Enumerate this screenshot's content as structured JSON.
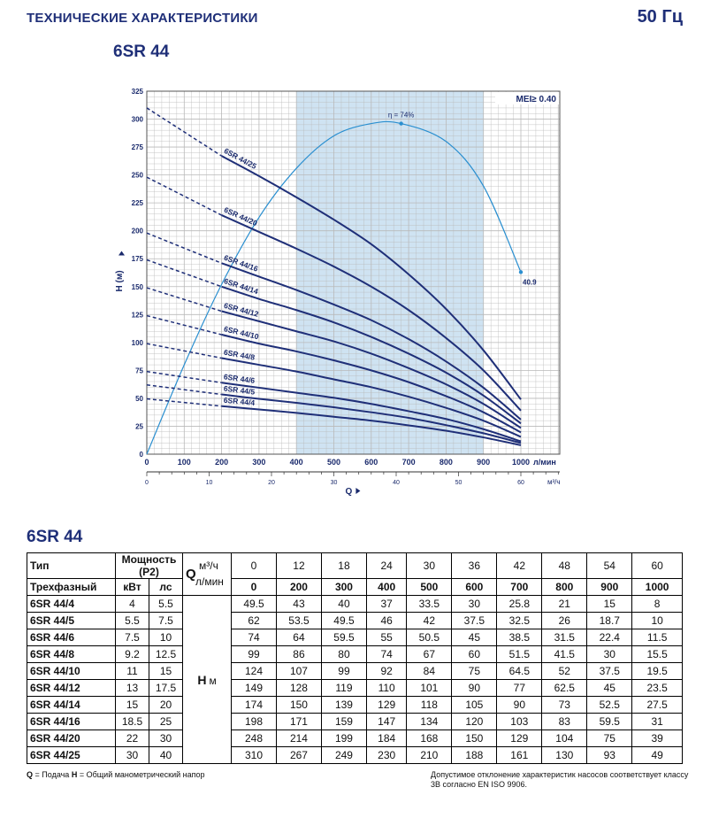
{
  "header": {
    "title": "ТЕХНИЧЕСКИЕ ХАРАКТЕРИСТИКИ",
    "frequency": "50 Гц",
    "model": "6SR 44"
  },
  "chart_data": {
    "type": "line",
    "ylabel": "H (м)",
    "xlabel": "Q",
    "x_unit": "л/мин",
    "x2_unit": "м³/ч",
    "mei_label": "MEI≥ 0.40",
    "eff_peak_label": "η = 74%",
    "eff_end_label": "40.9",
    "xlim": [
      0,
      1000
    ],
    "ylim": [
      0,
      325
    ],
    "x_ticks": [
      0,
      100,
      200,
      300,
      400,
      500,
      600,
      700,
      800,
      900,
      1000
    ],
    "y_ticks": [
      0,
      25,
      50,
      75,
      100,
      125,
      150,
      175,
      200,
      225,
      250,
      275,
      300,
      325
    ],
    "x2_ticks": [
      0,
      10,
      20,
      30,
      40,
      50,
      60
    ],
    "shaded_range": [
      400,
      900
    ],
    "grid": true,
    "colors": {
      "curve": "#1f2f78",
      "efficiency": "#2a8fd0",
      "shade": "#cfe3f2",
      "grid": "#b9b9b9"
    },
    "x": [
      0,
      200,
      300,
      400,
      500,
      600,
      700,
      800,
      900,
      1000
    ],
    "series": [
      {
        "name": "6SR 44/25",
        "values": [
          310,
          267,
          249,
          230,
          210,
          188,
          161,
          130,
          93,
          49
        ]
      },
      {
        "name": "6SR 44/20",
        "values": [
          248,
          214,
          199,
          184,
          168,
          150,
          129,
          104,
          75,
          39
        ]
      },
      {
        "name": "6SR 44/16",
        "values": [
          198,
          171,
          159,
          147,
          134,
          120,
          103,
          83,
          59.5,
          31
        ]
      },
      {
        "name": "6SR 44/14",
        "values": [
          174,
          150,
          139,
          129,
          118,
          105,
          90,
          73,
          52.5,
          27.5
        ]
      },
      {
        "name": "6SR 44/12",
        "values": [
          149,
          128,
          119,
          110,
          101,
          90,
          77,
          62.5,
          45,
          23.5
        ]
      },
      {
        "name": "6SR 44/10",
        "values": [
          124,
          107,
          99,
          92,
          84,
          75,
          64.5,
          52,
          37.5,
          19.5
        ]
      },
      {
        "name": "6SR 44/8",
        "values": [
          99,
          86,
          80,
          74,
          67,
          60,
          51.5,
          41.5,
          30,
          15.5
        ]
      },
      {
        "name": "6SR 44/6",
        "values": [
          74,
          64,
          59.5,
          55,
          50.5,
          45,
          38.5,
          31.5,
          22.4,
          11.5
        ]
      },
      {
        "name": "6SR 44/5",
        "values": [
          62,
          53.5,
          49.5,
          46,
          42,
          37.5,
          32.5,
          26,
          18.7,
          10
        ]
      },
      {
        "name": "6SR 44/4",
        "values": [
          49.5,
          43,
          40,
          37,
          33.5,
          30,
          25.8,
          21,
          15,
          8
        ]
      }
    ],
    "efficiency": {
      "x": [
        0,
        100,
        200,
        300,
        400,
        500,
        600,
        680,
        800,
        900,
        1000
      ],
      "values": [
        0,
        80,
        152,
        212,
        256,
        285,
        296,
        296,
        280,
        240,
        163
      ]
    }
  },
  "table": {
    "title": "6SR 44",
    "type_label": "Тип",
    "three_phase_label": "Трехфазный",
    "power_label": "Мощность (P2)",
    "kw_label": "кВт",
    "hp_label": "лс",
    "q_label": "Q",
    "q_unit1": "м³/ч",
    "q_unit2": "л/мин",
    "h_label": "H",
    "h_unit": "м",
    "q_m3h": [
      "0",
      "12",
      "18",
      "24",
      "30",
      "36",
      "42",
      "48",
      "54",
      "60"
    ],
    "q_lmin": [
      "0",
      "200",
      "300",
      "400",
      "500",
      "600",
      "700",
      "800",
      "900",
      "1000"
    ],
    "rows": [
      {
        "model": "6SR 44/4",
        "kw": "4",
        "hp": "5.5",
        "h": [
          "49.5",
          "43",
          "40",
          "37",
          "33.5",
          "30",
          "25.8",
          "21",
          "15",
          "8"
        ]
      },
      {
        "model": "6SR 44/5",
        "kw": "5.5",
        "hp": "7.5",
        "h": [
          "62",
          "53.5",
          "49.5",
          "46",
          "42",
          "37.5",
          "32.5",
          "26",
          "18.7",
          "10"
        ]
      },
      {
        "model": "6SR 44/6",
        "kw": "7.5",
        "hp": "10",
        "h": [
          "74",
          "64",
          "59.5",
          "55",
          "50.5",
          "45",
          "38.5",
          "31.5",
          "22.4",
          "11.5"
        ]
      },
      {
        "model": "6SR 44/8",
        "kw": "9.2",
        "hp": "12.5",
        "h": [
          "99",
          "86",
          "80",
          "74",
          "67",
          "60",
          "51.5",
          "41.5",
          "30",
          "15.5"
        ]
      },
      {
        "model": "6SR 44/10",
        "kw": "11",
        "hp": "15",
        "h": [
          "124",
          "107",
          "99",
          "92",
          "84",
          "75",
          "64.5",
          "52",
          "37.5",
          "19.5"
        ]
      },
      {
        "model": "6SR 44/12",
        "kw": "13",
        "hp": "17.5",
        "h": [
          "149",
          "128",
          "119",
          "110",
          "101",
          "90",
          "77",
          "62.5",
          "45",
          "23.5"
        ]
      },
      {
        "model": "6SR 44/14",
        "kw": "15",
        "hp": "20",
        "h": [
          "174",
          "150",
          "139",
          "129",
          "118",
          "105",
          "90",
          "73",
          "52.5",
          "27.5"
        ]
      },
      {
        "model": "6SR 44/16",
        "kw": "18.5",
        "hp": "25",
        "h": [
          "198",
          "171",
          "159",
          "147",
          "134",
          "120",
          "103",
          "83",
          "59.5",
          "31"
        ]
      },
      {
        "model": "6SR 44/20",
        "kw": "22",
        "hp": "30",
        "h": [
          "248",
          "214",
          "199",
          "184",
          "168",
          "150",
          "129",
          "104",
          "75",
          "39"
        ]
      },
      {
        "model": "6SR 44/25",
        "kw": "30",
        "hp": "40",
        "h": [
          "310",
          "267",
          "249",
          "230",
          "210",
          "188",
          "161",
          "130",
          "93",
          "49"
        ]
      }
    ]
  },
  "footer": {
    "legend_q": "Q",
    "legend_q_text": "= Подача",
    "legend_h": "H",
    "legend_h_text": "= Общий манометрический напор",
    "tolerance_note": "Допустимое отклонение характеристик насосов соответствует классу 3B согласно EN ISO 9906."
  }
}
